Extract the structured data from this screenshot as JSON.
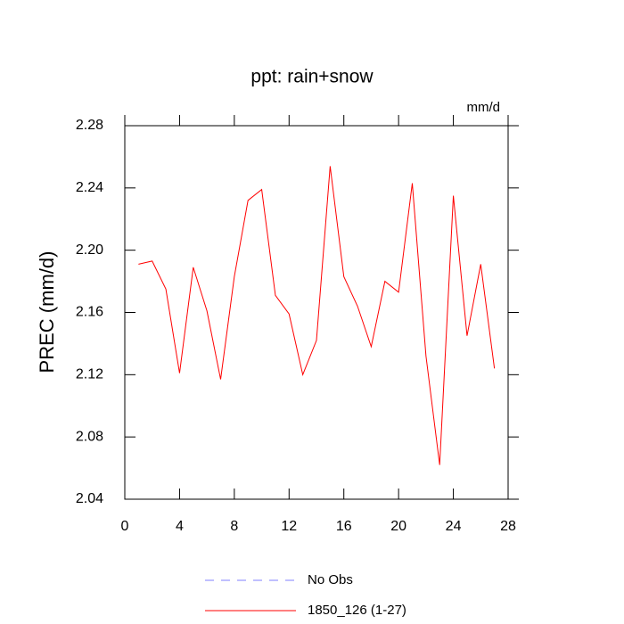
{
  "chart_data": {
    "type": "line",
    "title": "ppt: rain+snow",
    "ylabel": "PREC  (mm/d)",
    "units": "mm/d",
    "x": [
      1,
      2,
      3,
      4,
      5,
      6,
      7,
      8,
      9,
      10,
      11,
      12,
      13,
      14,
      15,
      16,
      17,
      18,
      19,
      20,
      21,
      22,
      23,
      24,
      25,
      26,
      27
    ],
    "series": [
      {
        "name": "No Obs",
        "color": "#8080ff",
        "values": [
          null,
          null,
          null,
          null,
          null,
          null,
          null,
          null,
          null,
          null,
          null,
          null,
          null,
          null,
          null,
          null,
          null,
          null,
          null,
          null,
          null,
          null,
          null,
          null,
          null,
          null,
          null
        ]
      },
      {
        "name": "1850_126 (1-27)",
        "color": "#ff0000",
        "values": [
          2.191,
          2.193,
          2.175,
          2.121,
          2.189,
          2.161,
          2.117,
          2.183,
          2.232,
          2.239,
          2.171,
          2.159,
          2.12,
          2.142,
          2.254,
          2.183,
          2.164,
          2.138,
          2.18,
          2.173,
          2.243,
          2.132,
          2.062,
          2.235,
          2.145,
          2.191,
          2.124
        ]
      }
    ],
    "xlim": [
      0,
      28
    ],
    "xticks": [
      0,
      4,
      8,
      12,
      16,
      20,
      24,
      28
    ],
    "ylim": [
      2.04,
      2.28
    ],
    "yticks": [
      2.04,
      2.08,
      2.12,
      2.16,
      {
        "value": 2.2,
        "label": "2.20"
      },
      2.24,
      2.28
    ]
  }
}
